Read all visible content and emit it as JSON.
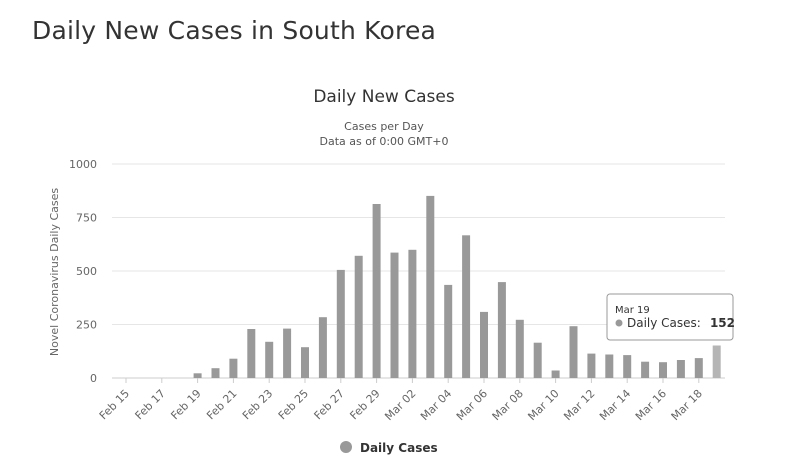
{
  "page": {
    "title": "Daily New Cases in South Korea"
  },
  "chart_data": {
    "type": "bar",
    "title": "Daily New Cases",
    "subtitle": "Cases per Day",
    "subtitle2": "Data as of 0:00 GMT+0",
    "ylabel": "Novel Coronavirus Daily Cases",
    "xlabel": "",
    "ylim": [
      0,
      1000
    ],
    "yticks": [
      0,
      250,
      500,
      750,
      1000
    ],
    "grid": true,
    "legend": "bottom-center",
    "x_tick_labels": [
      "Feb 15",
      "Feb 17",
      "Feb 19",
      "Feb 21",
      "Feb 23",
      "Feb 25",
      "Feb 27",
      "Feb 29",
      "Mar 02",
      "Mar 04",
      "Mar 06",
      "Mar 08",
      "Mar 10",
      "Mar 12",
      "Mar 14",
      "Mar 16",
      "Mar 18"
    ],
    "categories": [
      "Feb 15",
      "Feb 16",
      "Feb 17",
      "Feb 18",
      "Feb 19",
      "Feb 20",
      "Feb 21",
      "Feb 22",
      "Feb 23",
      "Feb 24",
      "Feb 25",
      "Feb 26",
      "Feb 27",
      "Feb 28",
      "Feb 29",
      "Mar 01",
      "Mar 02",
      "Mar 03",
      "Mar 04",
      "Mar 05",
      "Mar 06",
      "Mar 07",
      "Mar 08",
      "Mar 09",
      "Mar 10",
      "Mar 11",
      "Mar 12",
      "Mar 13",
      "Mar 14",
      "Mar 15",
      "Mar 16",
      "Mar 17",
      "Mar 18",
      "Mar 19"
    ],
    "series": [
      {
        "name": "Daily Cases",
        "color": "#999999",
        "values": [
          0,
          0,
          0,
          0,
          22,
          46,
          90,
          229,
          169,
          231,
          144,
          284,
          505,
          571,
          813,
          586,
          599,
          851,
          435,
          667,
          309,
          448,
          272,
          165,
          35,
          242,
          114,
          110,
          107,
          76,
          74,
          84,
          93,
          152
        ]
      }
    ],
    "tooltip": {
      "date": "Mar 19",
      "label": "Daily Cases:",
      "value": "152",
      "index": 33
    },
    "colors": {
      "bar": "#999999",
      "bar_highlight": "#b5b5b5",
      "grid": "#e6e6e6"
    }
  }
}
